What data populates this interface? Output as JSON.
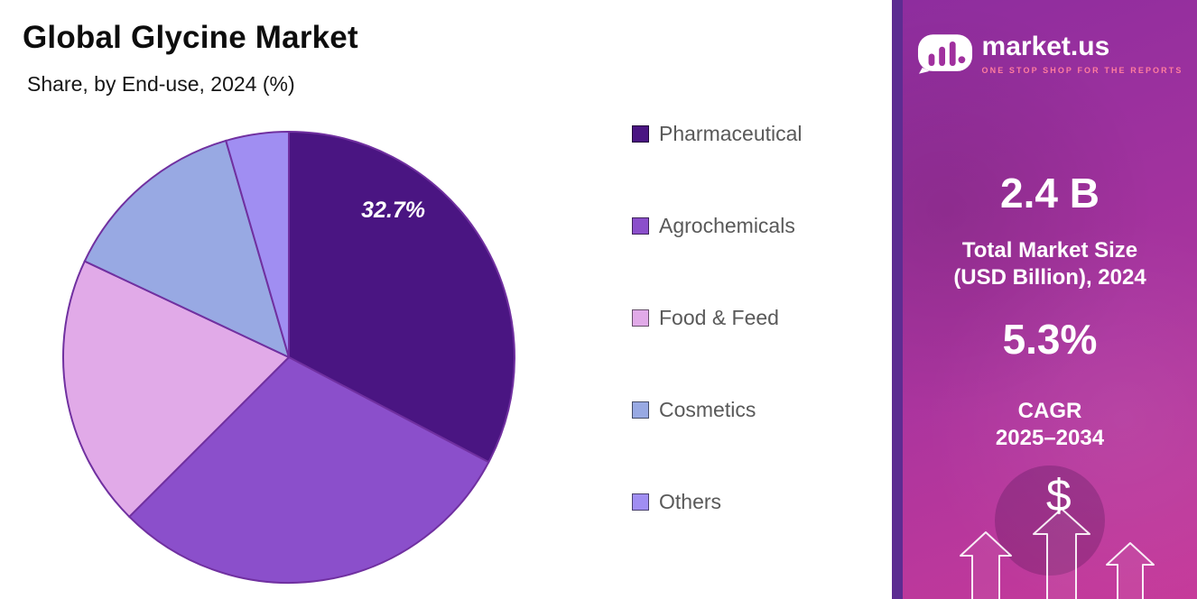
{
  "header": {
    "title": "Global Glycine Market",
    "subtitle": "Share, by End-use, 2024 (%)"
  },
  "chart_data": {
    "type": "pie",
    "title": "Global Glycine Market",
    "subtitle": "Share, by End-use, 2024 (%)",
    "labels": [
      "Pharmaceutical",
      "Agrochemicals",
      "Food & Feed",
      "Cosmetics",
      "Others"
    ],
    "values": [
      32.7,
      29.8,
      19.5,
      13.5,
      4.5
    ],
    "colors": [
      "#4a1582",
      "#8b4fcb",
      "#e1aae8",
      "#98a9e3",
      "#a08ef2"
    ],
    "slice_stroke": "#7030a0",
    "start_angle_deg": 0,
    "direction": "clockwise",
    "legend_position": "right",
    "data_label": {
      "text": "32.7%",
      "slice_index": 0,
      "radius_frac": 0.8,
      "angle_frac": 0.3
    }
  },
  "panel": {
    "brand": {
      "name": "market.us",
      "tagline": "ONE STOP SHOP FOR THE REPORTS",
      "logo_icon": "marketus-cloud-bars-logo"
    },
    "market_size": {
      "value": "2.4 B",
      "label_line1": "Total Market Size",
      "label_line2": "(USD Billion), 2024"
    },
    "cagr": {
      "value": "5.3%",
      "label_line1": "CAGR",
      "label_line2": "2025–2034"
    },
    "dollar_icon_glyph": "$",
    "colors": {
      "strip": "#5c2c91",
      "gradient_top": "#8e2d9e",
      "gradient_mid": "#a9349e",
      "gradient_bottom": "#c63a9a"
    }
  }
}
